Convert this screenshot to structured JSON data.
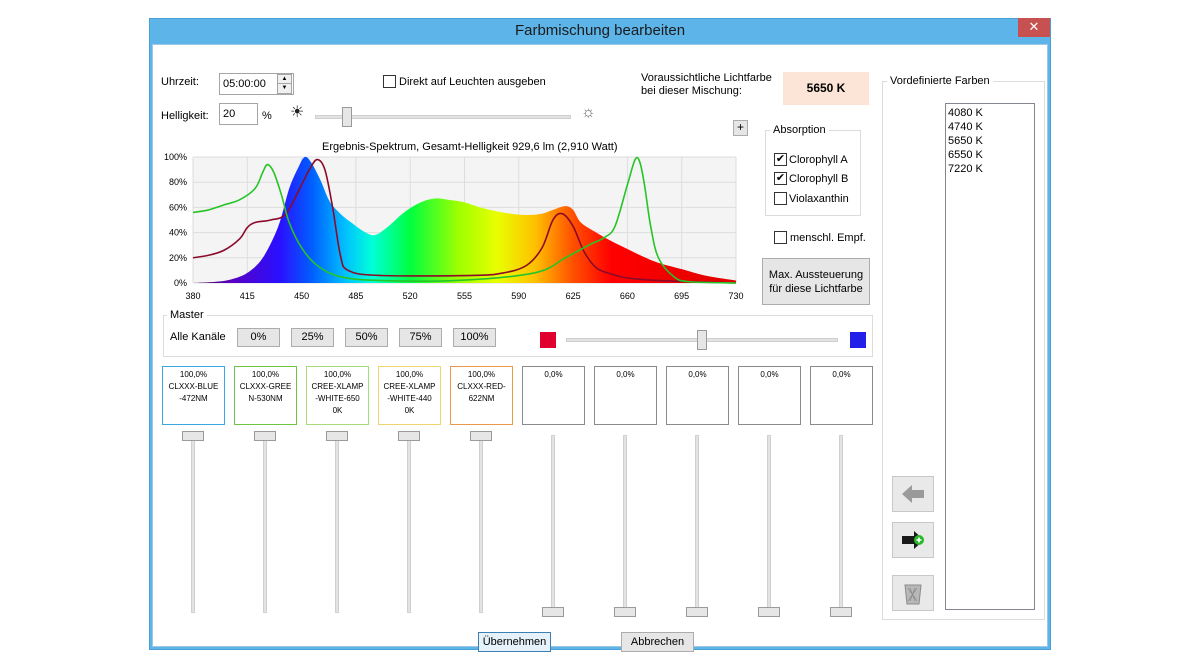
{
  "window": {
    "title": "Farbmischung bearbeiten",
    "close": "✕"
  },
  "time": {
    "label": "Uhrzeit:",
    "value": "05:00:00"
  },
  "brightness": {
    "label": "Helligkeit:",
    "value": "20",
    "unit": "%",
    "level": 0.11
  },
  "direct": {
    "label": "Direkt auf Leuchten ausgeben",
    "checked": false
  },
  "forecast": {
    "label1": "Voraussichtliche Lichtfarbe",
    "label2": "bei dieser Mischung:",
    "value": "5650 K",
    "color": "#fce4d6"
  },
  "plus": "+",
  "absorption": {
    "title": "Absorption",
    "items": [
      {
        "label": "Clorophyll A",
        "checked": true
      },
      {
        "label": "Clorophyll B",
        "checked": true
      },
      {
        "label": "Violaxanthin",
        "checked": false
      }
    ]
  },
  "human": {
    "label": "menschl. Empf.",
    "checked": false
  },
  "maxbtn": {
    "line1": "Max. Aussteuerung",
    "line2": "für diese Lichtfarbe"
  },
  "chart_data": {
    "type": "area",
    "title": "Ergebnis-Spektrum, Gesamt-Helligkeit 929,6 lm (2,910 Watt)",
    "xlim": [
      380,
      730
    ],
    "ylim": [
      0,
      100
    ],
    "x_ticks": [
      "380",
      "415",
      "450",
      "485",
      "520",
      "555",
      "590",
      "625",
      "660",
      "695",
      "730"
    ],
    "y_ticks": [
      "0%",
      "20%",
      "40%",
      "60%",
      "80%",
      "100%"
    ],
    "grid": true,
    "series": [
      {
        "x": [
          380,
          395,
          405,
          415,
          425,
          435,
          442,
          448,
          452,
          456,
          462,
          468,
          475,
          482,
          490,
          497,
          505,
          515,
          525,
          535,
          545,
          555,
          565,
          575,
          585,
          595,
          605,
          612,
          620,
          625,
          630,
          640,
          650,
          660,
          670,
          680,
          695,
          710,
          730
        ],
        "y": [
          0,
          1,
          3,
          8,
          20,
          45,
          75,
          92,
          100,
          96,
          82,
          65,
          55,
          48,
          41,
          38,
          44,
          55,
          63,
          67,
          66,
          64,
          60,
          57,
          55,
          54,
          55,
          58,
          61,
          58,
          48,
          40,
          33,
          27,
          21,
          16,
          11,
          6,
          2
        ]
      },
      {
        "name": "Clorophyll A",
        "color": "#8b0a2a",
        "x": [
          380,
          390,
          400,
          410,
          415,
          420,
          430,
          440,
          450,
          455,
          460,
          465,
          470,
          475,
          480,
          500,
          560,
          580,
          595,
          605,
          612,
          618,
          625,
          632,
          640,
          650,
          660,
          680,
          700,
          730
        ],
        "y": [
          20,
          22,
          26,
          35,
          44,
          48,
          50,
          55,
          78,
          90,
          98,
          90,
          60,
          22,
          10,
          6,
          6,
          8,
          14,
          28,
          50,
          55,
          45,
          25,
          12,
          7,
          4,
          2,
          1,
          0
        ]
      },
      {
        "name": "Clorophyll B",
        "color": "#27c427",
        "x": [
          380,
          390,
          400,
          410,
          420,
          425,
          428,
          432,
          437,
          442,
          450,
          460,
          475,
          500,
          550,
          600,
          620,
          635,
          645,
          652,
          660,
          665,
          668,
          671,
          675,
          680,
          690,
          700,
          730
        ],
        "y": [
          56,
          58,
          62,
          66,
          75,
          88,
          94,
          88,
          70,
          48,
          28,
          14,
          5,
          2,
          2,
          8,
          20,
          30,
          36,
          45,
          78,
          98,
          96,
          78,
          45,
          20,
          5,
          1,
          0
        ]
      }
    ]
  },
  "master": {
    "title": "Master",
    "all_channels": "Alle Kanäle",
    "buttons": [
      "0%",
      "25%",
      "50%",
      "75%",
      "100%"
    ],
    "mix_level": 0.5,
    "red": "#e00030",
    "blue": "#2020e8"
  },
  "channels": [
    {
      "pct": "100,0%",
      "l1": "CLXXX-BLUE",
      "l2": "-472NM",
      "l3": "",
      "border": "#3aa8e0",
      "level": 1.0
    },
    {
      "pct": "100,0%",
      "l1": "CLXXX-GREE",
      "l2": "N-530NM",
      "l3": "",
      "border": "#6cc644",
      "level": 1.0
    },
    {
      "pct": "100,0%",
      "l1": "CREE-XLAMP",
      "l2": "-WHITE-650",
      "l3": "0K",
      "border": "#a8dc78",
      "level": 1.0
    },
    {
      "pct": "100,0%",
      "l1": "CREE-XLAMP",
      "l2": "-WHITE-440",
      "l3": "0K",
      "border": "#f2d46c",
      "level": 1.0
    },
    {
      "pct": "100,0%",
      "l1": "CLXXX-RED-",
      "l2": "622NM",
      "l3": "",
      "border": "#e89848",
      "level": 1.0
    },
    {
      "pct": "0,0%",
      "l1": "",
      "l2": "",
      "l3": "",
      "border": "#8a8a8a",
      "level": 0.0
    },
    {
      "pct": "0,0%",
      "l1": "",
      "l2": "",
      "l3": "",
      "border": "#8a8a8a",
      "level": 0.0
    },
    {
      "pct": "0,0%",
      "l1": "",
      "l2": "",
      "l3": "",
      "border": "#8a8a8a",
      "level": 0.0
    },
    {
      "pct": "0,0%",
      "l1": "",
      "l2": "",
      "l3": "",
      "border": "#8a8a8a",
      "level": 0.0
    },
    {
      "pct": "0,0%",
      "l1": "",
      "l2": "",
      "l3": "",
      "border": "#8a8a8a",
      "level": 0.0
    }
  ],
  "predefined": {
    "title": "Vordefinierte Farben",
    "items": [
      "4080 K",
      "4740 K",
      "5650 K",
      "6550 K",
      "7220 K"
    ]
  },
  "side_buttons": [
    "arrow-left-icon",
    "arrow-right-add-icon",
    "trash-icon"
  ],
  "footer": {
    "ok": "Übernehmen",
    "cancel": "Abbrechen"
  }
}
